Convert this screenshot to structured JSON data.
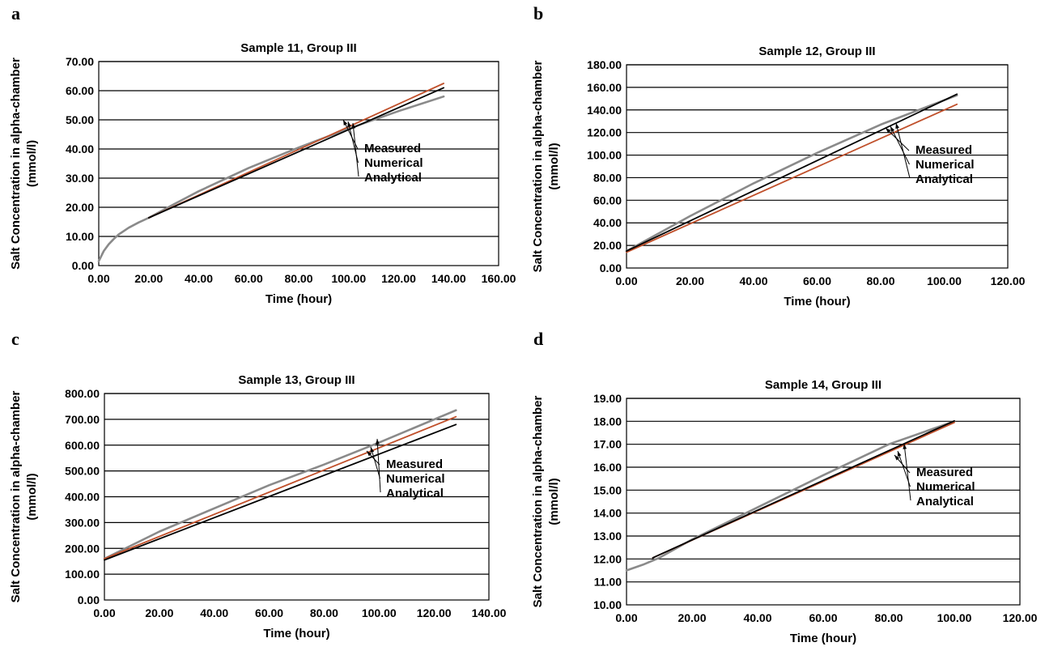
{
  "chart_data": [
    {
      "type": "line",
      "panel_label": "a",
      "title": "Sample 11, Group III",
      "xlabel": "Time (hour)",
      "ylabel_line1": "Salt Concentration in alpha-chamber",
      "ylabel_line2": "(mmol/l)",
      "xlim": [
        0,
        160
      ],
      "ylim": [
        0,
        70
      ],
      "xticks": [
        "0.00",
        "20.00",
        "40.00",
        "60.00",
        "80.00",
        "100.00",
        "120.00",
        "140.00",
        "160.00"
      ],
      "yticks": [
        "0.00",
        "10.00",
        "20.00",
        "30.00",
        "40.00",
        "50.00",
        "60.00",
        "70.00"
      ],
      "grid": true,
      "series": [
        {
          "name": "Measured",
          "color": "#8a8a8a",
          "x": [
            0,
            2,
            4,
            6,
            8,
            12,
            16,
            20,
            30,
            40,
            60,
            80,
            100,
            120,
            138
          ],
          "y": [
            1.5,
            5.0,
            7.3,
            9.1,
            10.7,
            13.0,
            14.8,
            16.4,
            21.0,
            25.5,
            33.5,
            40.5,
            47.0,
            53.0,
            58.0
          ]
        },
        {
          "name": "Numerical",
          "color": "#c0502b",
          "x": [
            20,
            138
          ],
          "y": [
            16.4,
            62.5
          ]
        },
        {
          "name": "Analytical",
          "color": "#000000",
          "x": [
            20,
            138
          ],
          "y": [
            16.4,
            61.0
          ]
        }
      ],
      "legend": [
        "Measured",
        "Numerical",
        "Analytical"
      ]
    },
    {
      "type": "line",
      "panel_label": "b",
      "title": "Sample 12, Group III",
      "xlabel": "Time (hour)",
      "ylabel_line1": "Salt Concentration in alpha-chamber",
      "ylabel_line2": "(mmol/l)",
      "xlim": [
        0,
        120
      ],
      "ylim": [
        0,
        180
      ],
      "xticks": [
        "0.00",
        "20.00",
        "40.00",
        "60.00",
        "80.00",
        "100.00",
        "120.00"
      ],
      "yticks": [
        "0.00",
        "20.00",
        "40.00",
        "60.00",
        "80.00",
        "100.00",
        "120.00",
        "140.00",
        "160.00",
        "180.00"
      ],
      "grid": true,
      "series": [
        {
          "name": "Measured",
          "color": "#8a8a8a",
          "x": [
            0,
            20,
            40,
            60,
            80,
            104
          ],
          "y": [
            15,
            46,
            75,
            102,
            127,
            153
          ]
        },
        {
          "name": "Numerical",
          "color": "#c0502b",
          "x": [
            0,
            104
          ],
          "y": [
            14,
            145
          ]
        },
        {
          "name": "Analytical",
          "color": "#000000",
          "x": [
            0,
            104
          ],
          "y": [
            15,
            154
          ]
        }
      ],
      "legend": [
        "Measured",
        "Numerical",
        "Analytical"
      ]
    },
    {
      "type": "line",
      "panel_label": "c",
      "title": "Sample 13, Group III",
      "xlabel": "Time (hour)",
      "ylabel_line1": "Salt Concentration in alpha-chamber",
      "ylabel_line2": "(mmol/l)",
      "xlim": [
        0,
        140
      ],
      "ylim": [
        0,
        800
      ],
      "xticks": [
        "0.00",
        "20.00",
        "40.00",
        "60.00",
        "80.00",
        "100.00",
        "120.00",
        "140.00"
      ],
      "yticks": [
        "0.00",
        "100.00",
        "200.00",
        "300.00",
        "400.00",
        "500.00",
        "600.00",
        "700.00",
        "800.00"
      ],
      "grid": true,
      "series": [
        {
          "name": "Measured",
          "color": "#8a8a8a",
          "x": [
            0,
            20,
            40,
            60,
            80,
            100,
            128
          ],
          "y": [
            160,
            265,
            355,
            445,
            525,
            610,
            735
          ]
        },
        {
          "name": "Numerical",
          "color": "#c0502b",
          "x": [
            0,
            128
          ],
          "y": [
            160,
            710
          ]
        },
        {
          "name": "Analytical",
          "color": "#000000",
          "x": [
            0,
            128
          ],
          "y": [
            155,
            680
          ]
        }
      ],
      "legend": [
        "Measured",
        "Numerical",
        "Analytical"
      ]
    },
    {
      "type": "line",
      "panel_label": "d",
      "title": "Sample 14, Group III",
      "xlabel": "Time (hour)",
      "ylabel_line1": "Salt Concentration in alpha-chamber",
      "ylabel_line2": "(mmol/l)",
      "xlim": [
        0,
        120
      ],
      "ylim": [
        10,
        19
      ],
      "xticks": [
        "0.00",
        "20.00",
        "40.00",
        "60.00",
        "80.00",
        "100.00",
        "120.00"
      ],
      "yticks": [
        "10.00",
        "11.00",
        "12.00",
        "13.00",
        "14.00",
        "15.00",
        "16.00",
        "17.00",
        "18.00",
        "19.00"
      ],
      "grid": true,
      "series": [
        {
          "name": "Measured",
          "color": "#8a8a8a",
          "x": [
            0,
            5,
            10,
            20,
            40,
            60,
            80,
            100
          ],
          "y": [
            11.5,
            11.75,
            12.05,
            12.85,
            14.25,
            15.65,
            17.0,
            18.0
          ]
        },
        {
          "name": "Numerical",
          "color": "#c0502b",
          "x": [
            8,
            100
          ],
          "y": [
            12.05,
            17.95
          ]
        },
        {
          "name": "Analytical",
          "color": "#000000",
          "x": [
            8,
            100
          ],
          "y": [
            12.05,
            18.02
          ]
        }
      ],
      "legend": [
        "Measured",
        "Numerical",
        "Analytical"
      ]
    }
  ]
}
